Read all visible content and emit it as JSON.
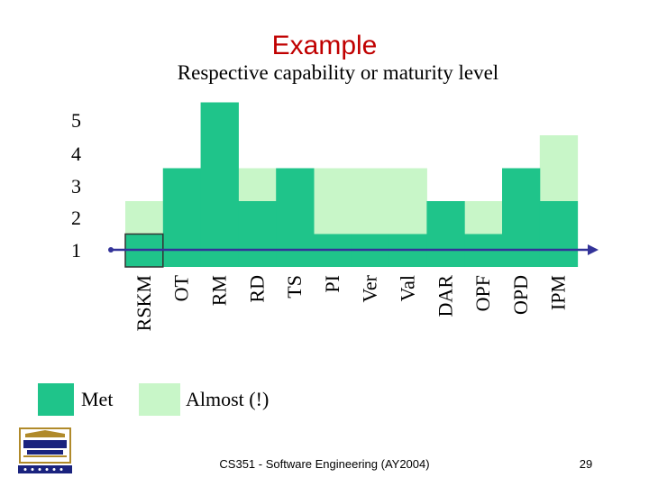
{
  "title": "Example",
  "footer": "CS351 - Software Engineering (AY2004)",
  "page_number": "29",
  "colors": {
    "met": "#1fc48a",
    "almost": "#c8f6c8",
    "axis": "#333399"
  },
  "legend": {
    "met_label": "Met",
    "almost_label": "Almost (!)"
  },
  "chart_data": {
    "type": "bar",
    "title": "",
    "ylabel": "Respective capability or maturity level",
    "xlabel": "",
    "yticks": [
      "1",
      "2",
      "3",
      "4",
      "5"
    ],
    "ylim": [
      0,
      5
    ],
    "categories": [
      "RSKM",
      "OT",
      "RM",
      "RD",
      "TS",
      "PI",
      "Ver",
      "Val",
      "DAR",
      "OPF",
      "OPD",
      "IPM"
    ],
    "series": [
      {
        "name": "Met",
        "values": [
          1,
          3,
          5,
          2,
          3,
          1,
          1,
          1,
          2,
          1,
          3,
          2
        ]
      },
      {
        "name": "Almost (!)",
        "values": [
          2,
          3,
          5,
          3,
          3,
          3,
          3,
          3,
          2,
          2,
          3,
          4
        ]
      }
    ],
    "grid": false,
    "legend_position": "bottom-left"
  }
}
